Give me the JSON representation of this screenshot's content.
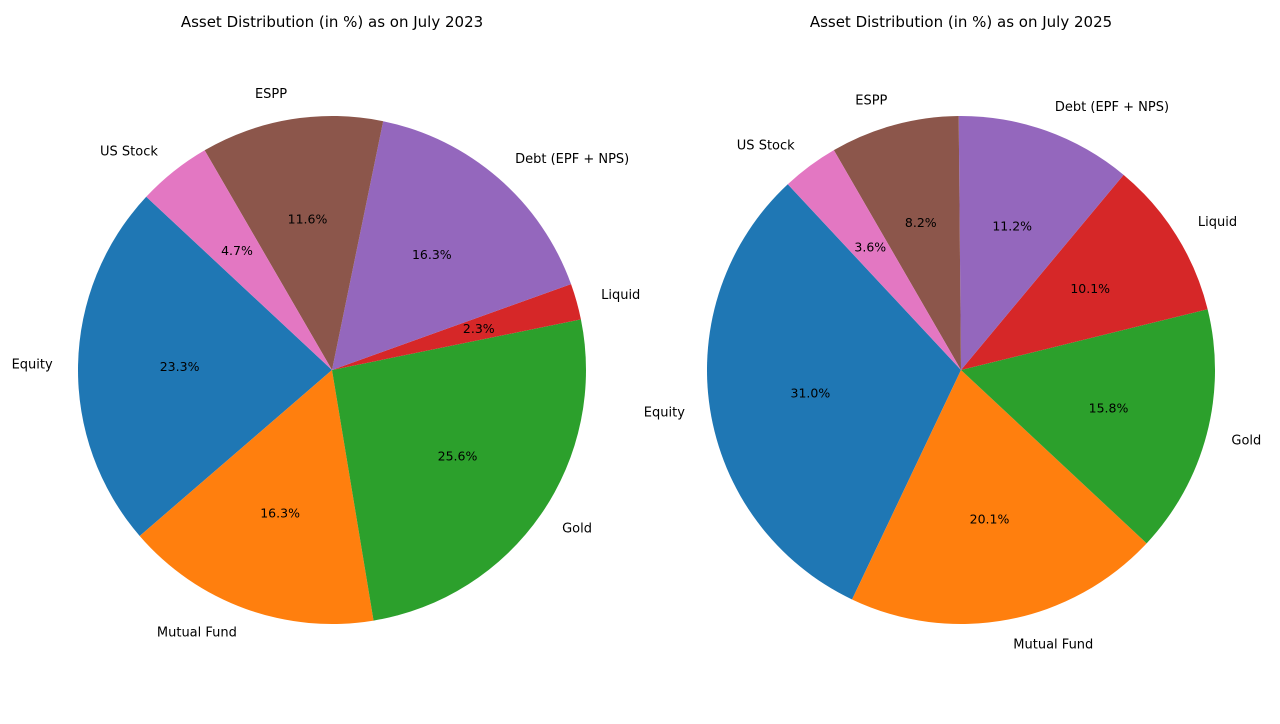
{
  "chart_data": [
    {
      "type": "pie",
      "title": "Asset Distribution (in %) as on July 2023",
      "categories": [
        "Equity",
        "Mutual Fund",
        "Gold",
        "Liquid",
        "Debt (EPF + NPS)",
        "ESPP",
        "US Stock"
      ],
      "values": [
        23.3,
        16.3,
        25.6,
        2.3,
        16.3,
        11.6,
        4.7
      ],
      "value_labels": [
        "23.3%",
        "16.3%",
        "25.6%",
        "2.3%",
        "16.3%",
        "11.6%",
        "4.7%"
      ],
      "colors": [
        "#1f77b4",
        "#ff7f0e",
        "#2ca02c",
        "#d62728",
        "#9467bd",
        "#8c564b",
        "#e377c2"
      ],
      "legend": "none"
    },
    {
      "type": "pie",
      "title": "Asset Distribution (in %) as on July 2025",
      "categories": [
        "Equity",
        "Mutual Fund",
        "Gold",
        "Liquid",
        "Debt (EPF + NPS)",
        "ESPP",
        "US Stock"
      ],
      "values": [
        31.0,
        20.1,
        15.8,
        10.1,
        11.2,
        8.2,
        3.6
      ],
      "value_labels": [
        "31.0%",
        "20.1%",
        "15.8%",
        "10.1%",
        "11.2%",
        "8.2%",
        "3.6%"
      ],
      "colors": [
        "#1f77b4",
        "#ff7f0e",
        "#2ca02c",
        "#d62728",
        "#9467bd",
        "#8c564b",
        "#e377c2"
      ],
      "legend": "none"
    }
  ]
}
